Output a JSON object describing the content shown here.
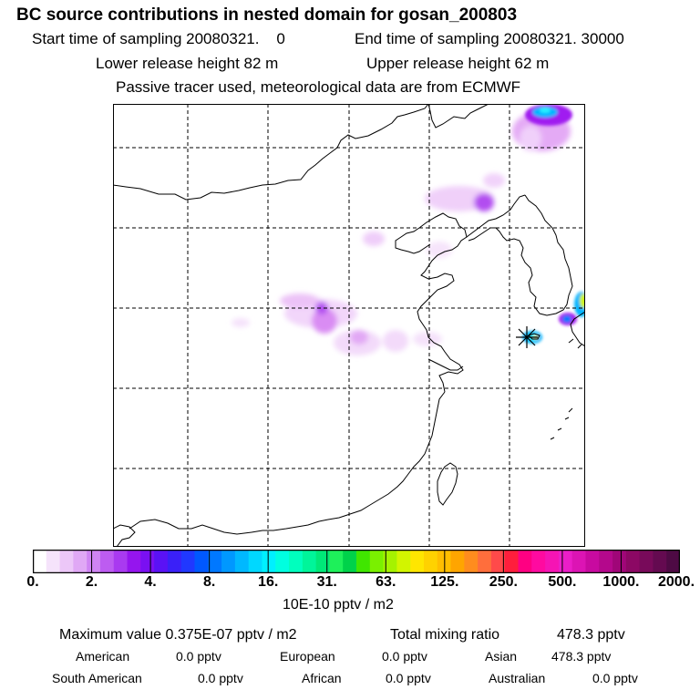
{
  "header": {
    "title": "BC  source contributions in nested domain for gosan_200803",
    "start_label": "Start time of sampling 20080321.",
    "start_value": "0",
    "end_label": "End time of sampling 20080321. 30000",
    "lower_label": "Lower release height   82 m",
    "upper_label": "Upper release height   62 m",
    "info": "Passive tracer used, meteorological data are from ECMWF"
  },
  "map": {
    "receptor": "gosan",
    "grid_style": "dashed",
    "plume_colors": [
      "#f2d6fa",
      "#e3a4f5",
      "#c96cf0",
      "#a01ef0",
      "#00b4ff",
      "#28f0ff",
      "#6b2bff"
    ]
  },
  "colorbar": {
    "tick_labels": [
      "0.",
      "2.",
      "4.",
      "8.",
      "16.",
      "31.",
      "63.",
      "125.",
      "250.",
      "500.",
      "1000.",
      "2000."
    ],
    "colors": [
      "#ffffff",
      "#f5e3fb",
      "#ecc7f8",
      "#e0a8f5",
      "#cf84f3",
      "#bd5cf1",
      "#a93af0",
      "#9515ee",
      "#7a10f2",
      "#5a12f5",
      "#3a20f8",
      "#2038ff",
      "#0058ff",
      "#0078ff",
      "#0098ff",
      "#00b8ff",
      "#00d8ff",
      "#00f0ff",
      "#00ffe0",
      "#00ffbe",
      "#00f59a",
      "#00e878",
      "#1ef05a",
      "#00d24a",
      "#40e600",
      "#7af000",
      "#a5f200",
      "#d2f500",
      "#ffe600",
      "#ffd200",
      "#ffbe00",
      "#ffa500",
      "#ff8c1e",
      "#ff6e3c",
      "#ff4a4a",
      "#ff1e3c",
      "#ff0082",
      "#ff0aa0",
      "#f514b4",
      "#eb1ec8",
      "#dc14b4",
      "#c80aa0",
      "#b4088c",
      "#a00678",
      "#8c0864",
      "#780a5a",
      "#640a50",
      "#4e0a44"
    ]
  },
  "units": "10E-10 pptv / m2",
  "stats": {
    "max_value": "Maximum value  0.375E-07 pptv / m2",
    "total_label": "Total mixing ratio",
    "total_value": "478.3 pptv"
  },
  "regions": [
    {
      "name": "American",
      "value": "0.0 pptv"
    },
    {
      "name": "European",
      "value": "0.0 pptv"
    },
    {
      "name": "Asian",
      "value": "478.3 pptv"
    },
    {
      "name": "South American",
      "value": "0.0 pptv"
    },
    {
      "name": "African",
      "value": "0.0 pptv"
    },
    {
      "name": "Australian",
      "value": "0.0 pptv"
    }
  ]
}
